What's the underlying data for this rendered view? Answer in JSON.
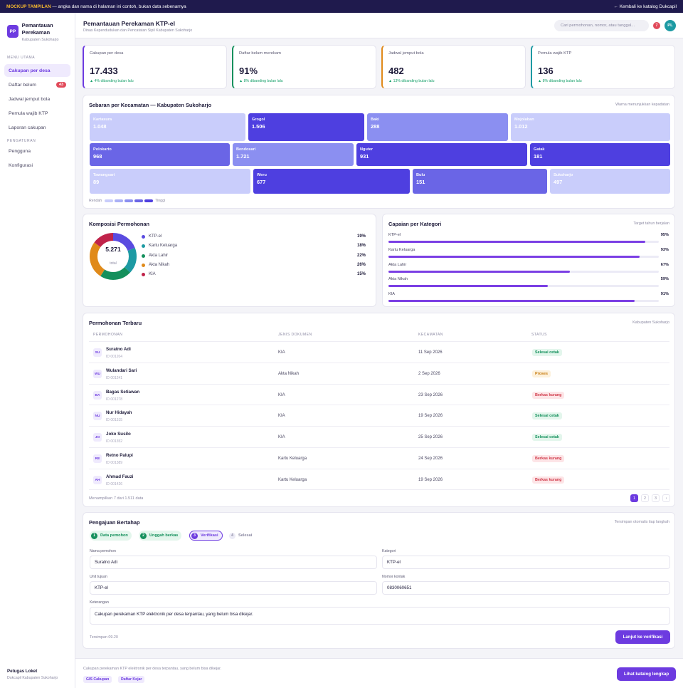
{
  "banner": {
    "tag": "MOCKUP TAMPILAN",
    "text": " — angka dan nama di halaman ini contoh, bukan data sebenarnya",
    "back": "← Kembali ke katalog Dukcapil"
  },
  "brand": {
    "initials": "PP",
    "name": "Pemantauan Perekaman",
    "sub": "Kabupaten Sukoharjo"
  },
  "nav": {
    "section1": "MENU UTAMA",
    "items1": [
      {
        "label": "Cakupan per desa"
      },
      {
        "label": "Daftar belum",
        "badge": "43"
      },
      {
        "label": "Jadwal jemput bola"
      },
      {
        "label": "Pemula wajib KTP"
      },
      {
        "label": "Laporan cakupan"
      }
    ],
    "section2": "PENGATURAN",
    "items2": [
      {
        "label": "Pengguna"
      },
      {
        "label": "Konfigurasi"
      }
    ]
  },
  "user": {
    "name": "Petugas Loket",
    "role": "Dukcapil Kabupaten Sukoharjo"
  },
  "header": {
    "title": "Pemantauan Perekaman KTP-el",
    "subtitle": "Dinas Kependudukan dan Pencatatan Sipil Kabupaten Sukoharjo",
    "search_placeholder": "Cari permohonan, nomor, atau tanggal...",
    "notif_count": "7",
    "avatar": "PL"
  },
  "kpis": [
    {
      "label": "Cakupan per desa",
      "value": "17.433",
      "delta": "▲ 4% dibanding bulan lalu",
      "color": "#6d3be0"
    },
    {
      "label": "Daftar belum merekam",
      "value": "91%",
      "delta": "▲ 8% dibanding bulan lalu",
      "color": "#14905c"
    },
    {
      "label": "Jadwal jemput bola",
      "value": "482",
      "delta": "▲ 13% dibanding bulan lalu",
      "color": "#e08a1a"
    },
    {
      "label": "Pemula wajib KTP",
      "value": "136",
      "delta": "▲ 8% dibanding bulan lalu",
      "color": "#1d9aa3"
    }
  ],
  "heatmap": {
    "title": "Sebaran per Kecamatan — Kabupaten Sukoharjo",
    "note": "Warna menunjukkan kepadatan",
    "legend_low": "Rendah",
    "legend_high": "Tinggi",
    "legend_colors": [
      "#c9cdfb",
      "#aab0f6",
      "#8b8ff1",
      "#6a65e6",
      "#4e3fe0"
    ],
    "rows": [
      [
        {
          "name": "Kartasura",
          "value": "1.048",
          "color": "#c9cdfb"
        },
        {
          "name": "Grogol",
          "value": "1.506",
          "color": "#4e3fe0"
        },
        {
          "name": "Baki",
          "value": "288",
          "color": "#8b8ff1"
        },
        {
          "name": "Mojolaban",
          "value": "1.012",
          "color": "#c9cdfb"
        }
      ],
      [
        {
          "name": "Polokarto",
          "value": "968",
          "color": "#6a65e6"
        },
        {
          "name": "Bendosari",
          "value": "1.721",
          "color": "#8b8ff1"
        },
        {
          "name": "Nguter",
          "value": "931",
          "color": "#4e3fe0"
        },
        {
          "name": "Gatak",
          "value": "181",
          "color": "#4e3fe0"
        }
      ],
      [
        {
          "name": "Tawangsari",
          "value": "89",
          "color": "#c9cdfb"
        },
        {
          "name": "Weru",
          "value": "677",
          "color": "#4e3fe0"
        },
        {
          "name": "Bulu",
          "value": "151",
          "color": "#6a65e6"
        },
        {
          "name": "Sukoharjo",
          "value": "497",
          "color": "#c9cdfb"
        }
      ]
    ]
  },
  "composition": {
    "title": "Komposisi Permohonan",
    "total": "5.271",
    "total_label": "total",
    "items": [
      {
        "label": "KTP-el",
        "pct": "19%",
        "value": 19,
        "color": "#5a4be0"
      },
      {
        "label": "Kartu Keluarga",
        "pct": "18%",
        "value": 18,
        "color": "#1d9aa3"
      },
      {
        "label": "Akta Lahir",
        "pct": "22%",
        "value": 22,
        "color": "#14905c"
      },
      {
        "label": "Akta Nikah",
        "pct": "26%",
        "value": 26,
        "color": "#e08a1a"
      },
      {
        "label": "KIA",
        "pct": "15%",
        "value": 15,
        "color": "#c0234a"
      }
    ]
  },
  "achievement": {
    "title": "Capaian per Kategori",
    "note": "Target tahun berjalan",
    "items": [
      {
        "label": "KTP-el",
        "pct": "95%",
        "value": 95
      },
      {
        "label": "Kartu Keluarga",
        "pct": "93%",
        "value": 93
      },
      {
        "label": "Akta Lahir",
        "pct": "67%",
        "value": 67
      },
      {
        "label": "Akta Nikah",
        "pct": "59%",
        "value": 59
      },
      {
        "label": "KIA",
        "pct": "91%",
        "value": 91
      }
    ]
  },
  "recent": {
    "title": "Permohonan Terbaru",
    "note": "Kabupaten Sukoharjo",
    "columns": [
      "PERMOHONAN",
      "JENIS DOKUMEN",
      "KECAMATAN",
      "STATUS"
    ],
    "rows": [
      {
        "initials": "SU",
        "name": "Suratno Adi",
        "id": "ID 001204",
        "doc": "KIA",
        "date": "11 Sep 2026",
        "status": "Selesai cetak",
        "kind": "ok"
      },
      {
        "initials": "WU",
        "name": "Wulandari Sari",
        "id": "ID 001241",
        "doc": "Akta Nikah",
        "date": "2 Sep 2026",
        "status": "Proses",
        "kind": "proc"
      },
      {
        "initials": "BA",
        "name": "Bagas Setiawan",
        "id": "ID 001278",
        "doc": "KIA",
        "date": "23 Sep 2026",
        "status": "Berkas kurang",
        "kind": "bad"
      },
      {
        "initials": "NU",
        "name": "Nur Hidayah",
        "id": "ID 001315",
        "doc": "KIA",
        "date": "19 Sep 2026",
        "status": "Selesai cetak",
        "kind": "ok"
      },
      {
        "initials": "JO",
        "name": "Joko Susilo",
        "id": "ID 001352",
        "doc": "KIA",
        "date": "25 Sep 2026",
        "status": "Selesai cetak",
        "kind": "ok"
      },
      {
        "initials": "RE",
        "name": "Retno Palupi",
        "id": "ID 001389",
        "doc": "Kartu Keluarga",
        "date": "24 Sep 2026",
        "status": "Berkas kurang",
        "kind": "bad"
      },
      {
        "initials": "AH",
        "name": "Ahmad Fauzi",
        "id": "ID 001426",
        "doc": "Kartu Keluarga",
        "date": "19 Sep 2026",
        "status": "Berkas kurang",
        "kind": "bad"
      }
    ],
    "summary": "Menampilkan 7 dari 1.511 data",
    "pages": [
      "1",
      "2",
      "3",
      "›"
    ]
  },
  "form": {
    "title": "Pengajuan Bertahap",
    "note": "Tersimpan otomatis tiap langkah",
    "steps": [
      {
        "n": "1",
        "label": "Data pemohon",
        "state": "done"
      },
      {
        "n": "2",
        "label": "Unggah berkas",
        "state": "done"
      },
      {
        "n": "3",
        "label": "Verifikasi",
        "state": "cur"
      },
      {
        "n": "4",
        "label": "Selesai",
        "state": "todo"
      }
    ],
    "fields": {
      "name_label": "Nama pemohon",
      "name_value": "Suratno Adi",
      "cat_label": "Kategori",
      "cat_value": "KTP-el",
      "unit_label": "Unit tujuan",
      "unit_value": "KTP-el",
      "phone_label": "Nomor kontak",
      "phone_value": "0830060651",
      "notes_label": "Keterangan",
      "notes_value": "Cakupan perekaman KTP elektronik per desa terpantau, yang belum bisa dikejar."
    },
    "saved": "Tersimpan 09.20",
    "next": "Lanjut ke verifikasi"
  },
  "footer": {
    "desc": "Cakupan perekaman KTP elektronik per desa terpantau, yang belum bisa dikejar.",
    "tags": [
      "GIS Cakupan",
      "Daftar Kejar"
    ],
    "button": "Lihat katalog lengkap"
  }
}
